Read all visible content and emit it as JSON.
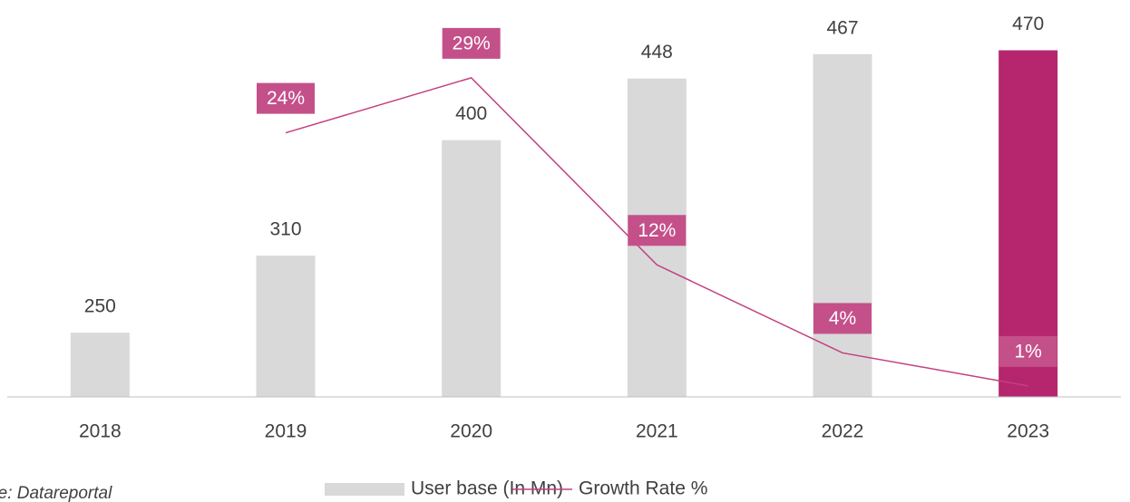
{
  "chart_data": {
    "type": "bar-line",
    "categories": [
      "2018",
      "2019",
      "2020",
      "2021",
      "2022",
      "2023"
    ],
    "ylim": [
      200,
      500
    ],
    "y2lim": [
      0,
      35
    ],
    "series": [
      {
        "name": "User base (In Mn)",
        "type": "bar",
        "colors": [
          "#d9d9d9",
          "#d9d9d9",
          "#d9d9d9",
          "#d9d9d9",
          "#d9d9d9",
          "#b5266f"
        ],
        "color": "#d9d9d9",
        "values": [
          250,
          310,
          400,
          448,
          467,
          470
        ]
      },
      {
        "name": "Growth Rate %",
        "type": "line",
        "axis": "y2",
        "color": "#c2407f",
        "label_color": "#c4508a",
        "values": [
          null,
          24,
          29,
          12,
          4,
          1
        ],
        "value_labels": [
          null,
          "24%",
          "29%",
          "12%",
          "4%",
          "1%"
        ]
      }
    ],
    "source": "Source: Datareportal"
  }
}
